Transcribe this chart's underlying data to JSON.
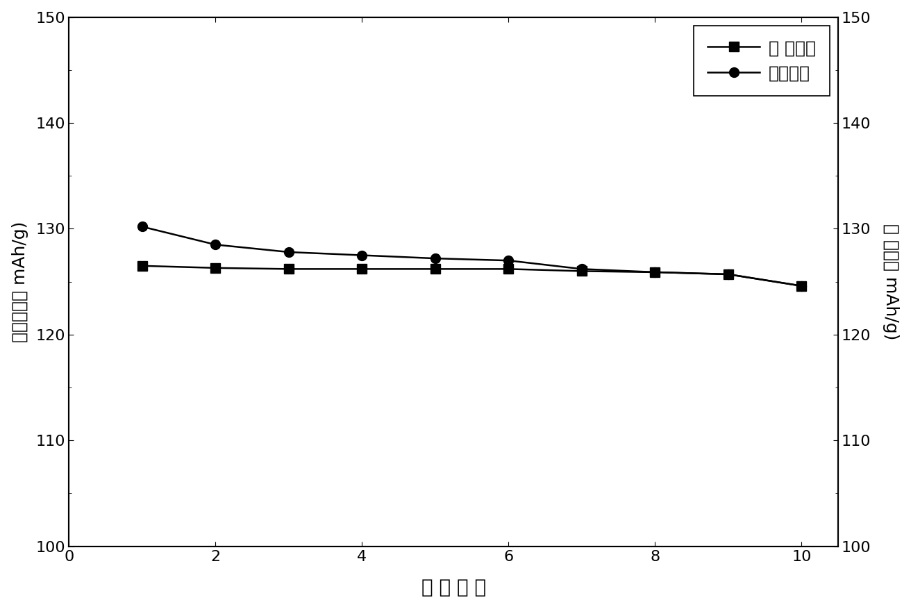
{
  "x": [
    1,
    2,
    3,
    4,
    5,
    6,
    7,
    8,
    9,
    10
  ],
  "discharge_y": [
    126.5,
    126.3,
    126.2,
    126.2,
    126.2,
    126.2,
    126.0,
    125.9,
    125.7,
    124.6
  ],
  "charge_y": [
    130.2,
    128.5,
    127.8,
    127.5,
    127.2,
    127.0,
    126.2,
    125.9,
    125.7,
    124.6
  ],
  "discharge_label": "放 电电容",
  "charge_label": "充电电容",
  "xlabel": "循 环 次 数",
  "ylabel_left": "充电电容（ mAh/g)",
  "ylabel_right": "放 电电容 mAh/g)",
  "xlim": [
    0,
    10.5
  ],
  "ylim": [
    100,
    150
  ],
  "yticks": [
    100,
    110,
    120,
    130,
    140,
    150
  ],
  "xticks": [
    0,
    2,
    4,
    6,
    8,
    10
  ],
  "line_color": "#000000",
  "background_color": "#ffffff",
  "marker_size": 10,
  "linewidth": 1.8,
  "xlabel_fontsize": 20,
  "ylabel_fontsize": 18,
  "tick_fontsize": 16,
  "legend_fontsize": 18
}
